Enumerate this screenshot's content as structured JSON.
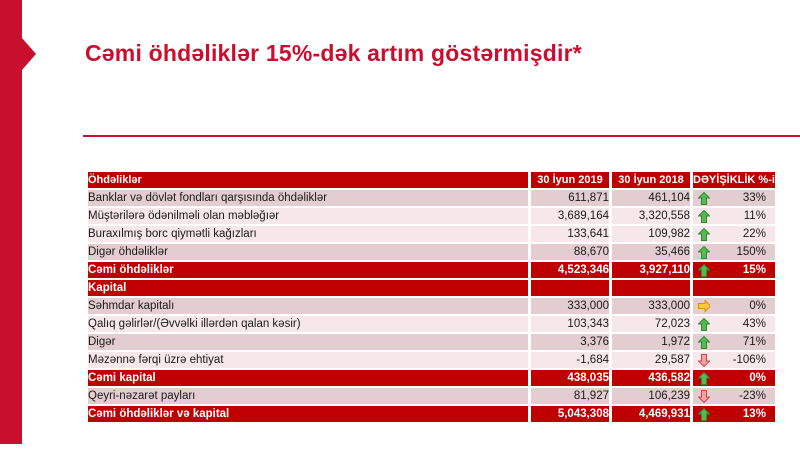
{
  "title": "Cəmi öhdəliklər 15%-dək artım göstərmişdir*",
  "colors": {
    "brand_red": "#C8102E",
    "table_red": "#C00000",
    "band_dark": "#E4CDD1",
    "band_light": "#F6E8EA",
    "arrow_up_fill": "#56B956",
    "arrow_up_stroke": "#2E8B2E",
    "arrow_down_fill": "#F2A2A2",
    "arrow_down_stroke": "#C34A4A",
    "arrow_right_fill": "#FFC64B",
    "arrow_right_stroke": "#E08E00"
  },
  "table": {
    "headers": [
      "Öhdəliklər",
      "30 İyun 2019",
      "30 İyun 2018",
      "DƏYİŞİKLİK %-i"
    ],
    "rows": [
      {
        "label": "Banklar və dövlət fondları qarşısında öhdəliklər",
        "v2019": "611,871",
        "v2018": "461,104",
        "trend": "up",
        "change": "33%",
        "style": "dark"
      },
      {
        "label": "Müştərilərə ödənilməli olan məbləğıər",
        "v2019": "3,689,164",
        "v2018": "3,320,558",
        "trend": "up",
        "change": "11%",
        "style": "light"
      },
      {
        "label": "Buraxılmış borc qiymətli kağızları",
        "v2019": "133,641",
        "v2018": "109,982",
        "trend": "up",
        "change": "22%",
        "style": "light"
      },
      {
        "label": "Digər öhdəliklər",
        "v2019": "88,670",
        "v2018": "35,466",
        "trend": "up",
        "change": "150%",
        "style": "dark"
      },
      {
        "label": "Cəmi öhdəliklər",
        "v2019": "4,523,346",
        "v2018": "3,927,110",
        "trend": "up",
        "change": "15%",
        "style": "total"
      },
      {
        "label": "Kapital",
        "v2019": "",
        "v2018": "",
        "trend": null,
        "change": "",
        "style": "section"
      },
      {
        "label": "Səhmdar kapitalı",
        "v2019": "333,000",
        "v2018": "333,000",
        "trend": "right",
        "change": "0%",
        "style": "dark"
      },
      {
        "label": "Qalıq gəlirlər/(Əvvəlki illərdən qalan kəsir)",
        "v2019": "103,343",
        "v2018": "72,023",
        "trend": "up",
        "change": "43%",
        "style": "light"
      },
      {
        "label": "Digər",
        "v2019": "3,376",
        "v2018": "1,972",
        "trend": "up",
        "change": "71%",
        "style": "dark"
      },
      {
        "label": "Məzənnə fərqi üzrə ehtiyat",
        "v2019": "-1,684",
        "v2018": "29,587",
        "trend": "down",
        "change": "-106%",
        "style": "light"
      },
      {
        "label": "Cəmi kapital",
        "v2019": "438,035",
        "v2018": "436,582",
        "trend": "up",
        "change": "0%",
        "style": "total"
      },
      {
        "label": "Qeyri-nəzarət payları",
        "v2019": "81,927",
        "v2018": "106,239",
        "trend": "down",
        "change": "-23%",
        "style": "dark"
      },
      {
        "label": "Cəmi öhdəliklər və kapital",
        "v2019": "5,043,308",
        "v2018": "4,469,931",
        "trend": "up",
        "change": "13%",
        "style": "total"
      }
    ]
  }
}
